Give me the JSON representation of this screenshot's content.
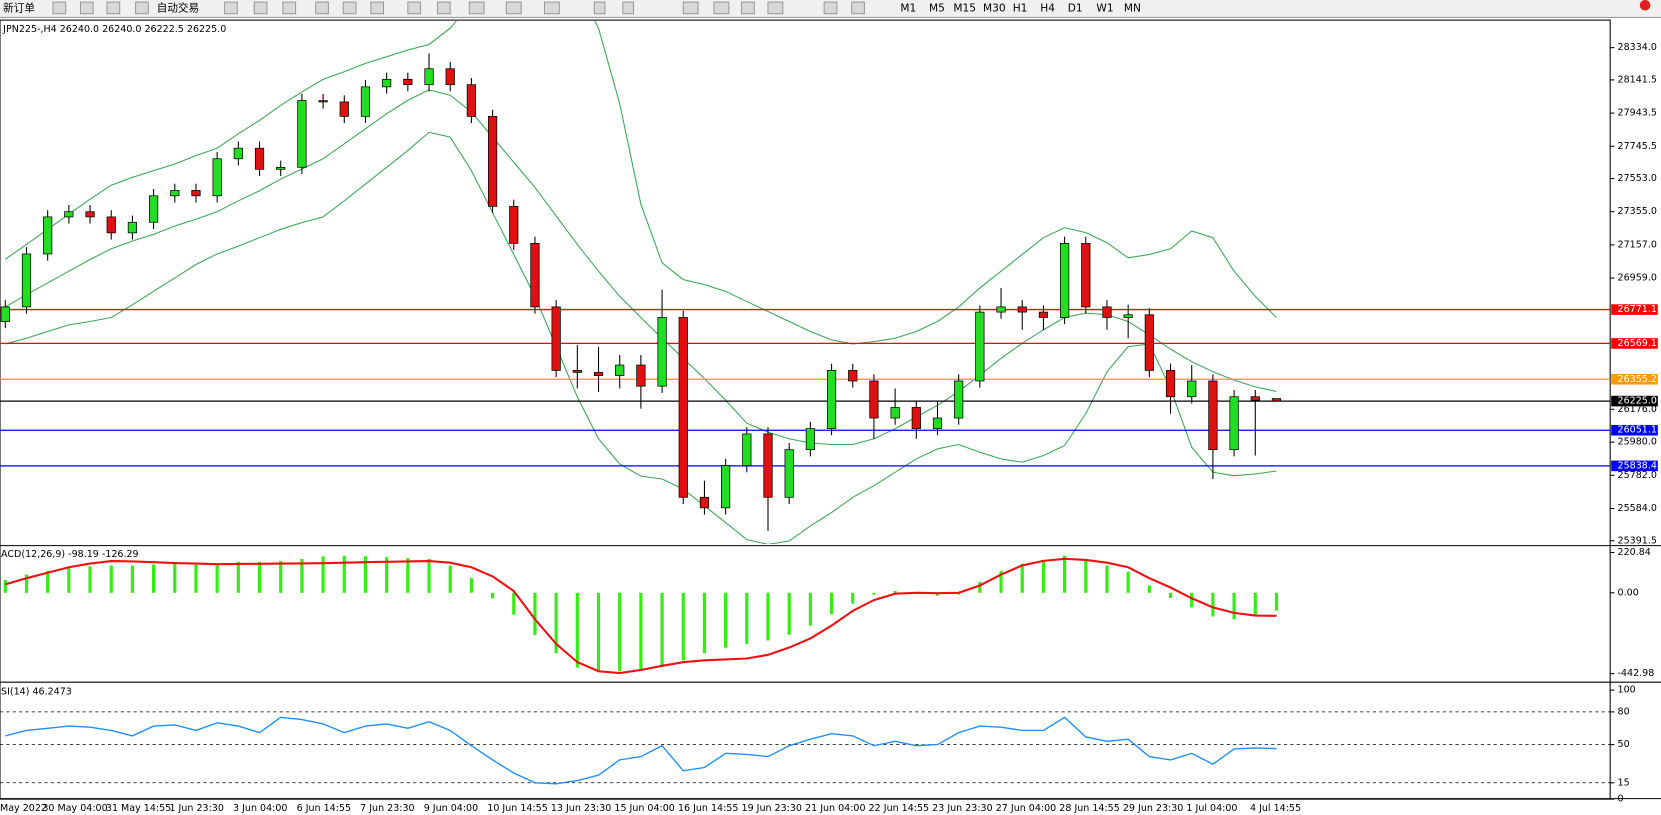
{
  "toolbar": {
    "items": [
      "新订单",
      "自动交易",
      "M1",
      "M5",
      "M15",
      "M30",
      "H1",
      "H4",
      "D1",
      "W1",
      "MN"
    ]
  },
  "chart_data": [
    {
      "type": "candlestick",
      "title": "JPN225-,H4  26240.0 26240.0 26222.5 26225.0",
      "up_color": "#22dd22",
      "down_color": "#e01010",
      "categories": [
        "May 2022",
        null,
        "30 May 04:00",
        null,
        null,
        "31 May 14:55",
        null,
        null,
        "1 Jun 23:30",
        null,
        null,
        "3 Jun 04:00",
        null,
        null,
        "6 Jun 14:55",
        null,
        null,
        "7 Jun 23:30",
        null,
        null,
        "9 Jun 04:00",
        null,
        null,
        "10 Jun 14:55",
        null,
        null,
        "13 Jun 23:30",
        null,
        null,
        "15 Jun 04:00",
        null,
        null,
        "16 Jun 14:55",
        null,
        null,
        "19 Jun 23:30",
        null,
        null,
        "21 Jun 04:00",
        null,
        null,
        "22 Jun 14:55",
        null,
        null,
        "23 Jun 23:30",
        null,
        null,
        "27 Jun 04:00",
        null,
        null,
        "28 Jun 14:55",
        null,
        null,
        "29 Jun 23:30",
        null,
        null,
        "1 Jul 04:00",
        null,
        null,
        "4 Jul 14:55",
        null
      ],
      "candles": [
        [
          26700,
          26827,
          26660,
          26787
        ],
        [
          26787,
          27143,
          26747,
          27103
        ],
        [
          27103,
          27364,
          27063,
          27324
        ],
        [
          27324,
          27395,
          27284,
          27355
        ],
        [
          27355,
          27395,
          27284,
          27324
        ],
        [
          27324,
          27364,
          27189,
          27229
        ],
        [
          27229,
          27332,
          27189,
          27292
        ],
        [
          27292,
          27490,
          27252,
          27450
        ],
        [
          27450,
          27522,
          27410,
          27482
        ],
        [
          27482,
          27522,
          27410,
          27450
        ],
        [
          27450,
          27711,
          27410,
          27671
        ],
        [
          27671,
          27774,
          27631,
          27734
        ],
        [
          27734,
          27774,
          27568,
          27608
        ],
        [
          27608,
          27660,
          27568,
          27620
        ],
        [
          27620,
          28058,
          27580,
          28018
        ],
        [
          28018,
          28058,
          27970,
          28010
        ],
        [
          28010,
          28050,
          27884,
          27924
        ],
        [
          27924,
          28140,
          27884,
          28100
        ],
        [
          28100,
          28185,
          28060,
          28145
        ],
        [
          28145,
          28185,
          28073,
          28113
        ],
        [
          28113,
          28300,
          28073,
          28208
        ],
        [
          28208,
          28248,
          28073,
          28113
        ],
        [
          28113,
          28153,
          27884,
          27924
        ],
        [
          27924,
          27964,
          27347,
          27387
        ],
        [
          27387,
          27427,
          27126,
          27166
        ],
        [
          27166,
          27206,
          26747,
          26787
        ],
        [
          26787,
          26827,
          26368,
          26408
        ],
        [
          26408,
          26560,
          26300,
          26396
        ],
        [
          26396,
          26550,
          26280,
          26377
        ],
        [
          26377,
          26500,
          26300,
          26440
        ],
        [
          26440,
          26500,
          26180,
          26314
        ],
        [
          26314,
          26890,
          26274,
          26724
        ],
        [
          26724,
          26764,
          25611,
          25651
        ],
        [
          25651,
          25750,
          25548,
          25588
        ],
        [
          25588,
          25880,
          25548,
          25840
        ],
        [
          25840,
          26069,
          25800,
          26029
        ],
        [
          26029,
          26069,
          25450,
          25651
        ],
        [
          25651,
          25975,
          25611,
          25935
        ],
        [
          25935,
          26101,
          25895,
          26061
        ],
        [
          26061,
          26448,
          26021,
          26408
        ],
        [
          26408,
          26448,
          26305,
          26345
        ],
        [
          26345,
          26385,
          26000,
          26124
        ],
        [
          26124,
          26300,
          26084,
          26187
        ],
        [
          26187,
          26227,
          26000,
          26061
        ],
        [
          26061,
          26227,
          26021,
          26124
        ],
        [
          26124,
          26385,
          26084,
          26345
        ],
        [
          26345,
          26796,
          26305,
          26756
        ],
        [
          26756,
          26900,
          26716,
          26787
        ],
        [
          26787,
          26827,
          26650,
          26756
        ],
        [
          26756,
          26796,
          26650,
          26724
        ],
        [
          26724,
          27206,
          26684,
          27166
        ],
        [
          27166,
          27206,
          26747,
          26787
        ],
        [
          26787,
          26827,
          26650,
          26724
        ],
        [
          26724,
          26800,
          26600,
          26740
        ],
        [
          26740,
          26780,
          26368,
          26408
        ],
        [
          26408,
          26448,
          26150,
          26251
        ],
        [
          26251,
          26440,
          26211,
          26345
        ],
        [
          26345,
          26385,
          25760,
          25935
        ],
        [
          25935,
          26291,
          25895,
          26251
        ],
        [
          26251,
          26291,
          25900,
          26230
        ],
        [
          26240,
          26240,
          26222.5,
          26225
        ]
      ],
      "bands": [
        {
          "color": "#3aa655",
          "values": [
            27071,
            27160,
            27250,
            27340,
            27430,
            27513,
            27560,
            27600,
            27640,
            27690,
            27734,
            27820,
            27900,
            27990,
            28070,
            28145,
            28190,
            28240,
            28280,
            28320,
            28353,
            28450,
            28600,
            28750,
            28850,
            28900,
            28850,
            28700,
            28450,
            28000,
            27400,
            27050,
            26950,
            26920,
            26880,
            26819,
            26760,
            26700,
            26640,
            26590,
            26566,
            26580,
            26600,
            26640,
            26700,
            26787,
            26900,
            27000,
            27100,
            27200,
            27260,
            27230,
            27170,
            27080,
            27100,
            27134,
            27240,
            27200,
            27000,
            26850,
            26724
          ]
        },
        {
          "color": "#3aa655",
          "values": [
            26787,
            26860,
            26930,
            27000,
            27070,
            27134,
            27180,
            27220,
            27270,
            27310,
            27355,
            27420,
            27480,
            27550,
            27610,
            27671,
            27760,
            27850,
            27940,
            28020,
            28082,
            28050,
            27950,
            27800,
            27650,
            27500,
            27330,
            27160,
            27000,
            26850,
            26724,
            26600,
            26480,
            26360,
            26230,
            26093,
            26040,
            26000,
            25975,
            25966,
            25966,
            26000,
            26060,
            26130,
            26200,
            26282,
            26380,
            26480,
            26570,
            26650,
            26724,
            26750,
            26740,
            26700,
            26620,
            26535,
            26460,
            26400,
            26350,
            26310,
            26282
          ]
        },
        {
          "color": "#3aa655",
          "values": [
            26566,
            26600,
            26640,
            26680,
            26700,
            26724,
            26800,
            26880,
            26960,
            27040,
            27103,
            27150,
            27200,
            27250,
            27290,
            27324,
            27420,
            27520,
            27620,
            27720,
            27829,
            27800,
            27600,
            27350,
            27100,
            26850,
            26550,
            26250,
            26000,
            25850,
            25777,
            25760,
            25700,
            25600,
            25500,
            25398,
            25370,
            25390,
            25480,
            25560,
            25651,
            25720,
            25800,
            25880,
            25940,
            25966,
            25920,
            25880,
            25860,
            25900,
            25960,
            26150,
            26400,
            26550,
            26566,
            26300,
            25950,
            25800,
            25780,
            25790,
            25808
          ]
        }
      ],
      "levels": [
        {
          "value": 26771.1,
          "color": "#ff0000"
        },
        {
          "value": 26569.1,
          "color": "#ff0000"
        },
        {
          "value": 26355.2,
          "color": "#ff9900"
        },
        {
          "value": 26225,
          "label": "26225.0",
          "color": "#000000"
        },
        {
          "value": 26051.1,
          "color": "#0000ff"
        },
        {
          "value": 25838.4,
          "label": "25838.4",
          "color": "#0000ff"
        }
      ],
      "ylim": [
        25372,
        28492
      ],
      "yticks": [
        {
          "value": 28334,
          "label": "28334.0"
        },
        {
          "value": 28141.5,
          "label": "28141.5"
        },
        {
          "value": 27943.5,
          "label": "27943.5"
        },
        {
          "value": 27745.5,
          "label": "27745.5"
        },
        {
          "value": 27553,
          "label": "27553.0"
        },
        {
          "value": 27355,
          "label": "27355.0"
        },
        {
          "value": 27157,
          "label": "27157.0"
        },
        {
          "value": 26959,
          "label": "26959.0"
        },
        {
          "value": 26176,
          "label": "26176.0"
        },
        {
          "value": 25980,
          "label": "25980.0"
        },
        {
          "value": 25782,
          "label": "25782.0"
        },
        {
          "value": 25584,
          "label": "25584.0"
        },
        {
          "value": 25391.5,
          "label": "25391.5"
        }
      ]
    },
    {
      "type": "macd",
      "title": "ACD(12,26,9) -98.19 -126.29",
      "histogram": {
        "color": "#33ee11",
        "values": [
          70,
          100,
          120,
          135,
          145,
          150,
          150,
          155,
          160,
          160,
          162,
          170,
          170,
          175,
          185,
          200,
          203,
          200,
          195,
          190,
          186,
          150,
          80,
          -30,
          -120,
          -232,
          -330,
          -410,
          -435,
          -430,
          -420,
          -406,
          -370,
          -330,
          -300,
          -280,
          -261,
          -230,
          -180,
          -116,
          -60,
          -10,
          10,
          -5,
          -15,
          -10,
          60,
          120,
          160,
          180,
          203,
          180,
          150,
          116,
          40,
          -29,
          -80,
          -130,
          -145,
          -120,
          -98.19
        ]
      },
      "signal": {
        "color": "#ee1111",
        "values": [
          46,
          80,
          110,
          140,
          160,
          174,
          172,
          168,
          163,
          160,
          157,
          158,
          159,
          160,
          161,
          162,
          165,
          168,
          170,
          172,
          174,
          165,
          140,
          90,
          10,
          -145,
          -280,
          -380,
          -430,
          -440,
          -423,
          -400,
          -380,
          -370,
          -365,
          -360,
          -340,
          -300,
          -250,
          -180,
          -99,
          -40,
          -5,
          0,
          -2,
          0,
          40,
          100,
          150,
          175,
          186,
          180,
          165,
          140,
          80,
          29,
          -30,
          -80,
          -110,
          -125,
          -126.29
        ]
      },
      "ylim": [
        -481,
        244
      ],
      "yticks": [
        {
          "value": 220.84,
          "label": "220.84"
        },
        {
          "value": 0,
          "label": "0.00"
        },
        {
          "value": -442.98,
          "label": "-442.98"
        }
      ]
    },
    {
      "type": "line",
      "title": "SI(14) 46.2473",
      "color": "#1e8fff",
      "values": [
        58,
        63,
        65,
        67,
        66,
        63,
        58,
        67,
        68,
        63,
        70,
        67,
        61,
        75,
        73,
        69,
        61,
        67,
        69,
        65,
        71,
        63,
        49,
        36,
        24,
        15,
        14,
        17,
        22,
        36,
        39,
        49,
        26,
        29,
        42,
        41,
        39,
        49,
        55,
        60,
        58,
        49,
        53,
        49,
        50,
        61,
        67,
        66,
        63,
        63,
        75,
        57,
        53,
        55,
        39,
        36,
        42,
        32,
        46,
        47,
        46.2473
      ],
      "ylim": [
        0,
        100
      ],
      "yticks": [
        100,
        80,
        50,
        15,
        0
      ],
      "dashed_levels": [
        80,
        50,
        15
      ]
    }
  ]
}
